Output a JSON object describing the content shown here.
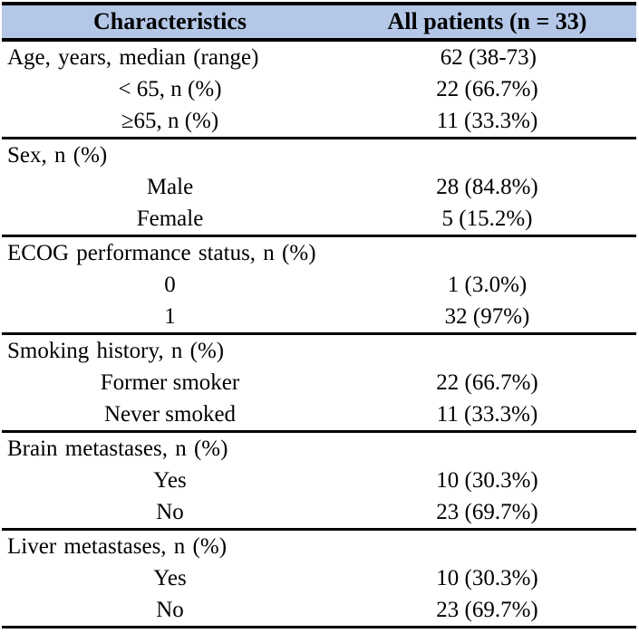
{
  "colors": {
    "header_bg": "#b4c7e7",
    "border": "#000000",
    "text": "#000000"
  },
  "table": {
    "header": {
      "characteristics": "Characteristics",
      "all_patients": "All patients (n = 33)"
    },
    "sections": [
      {
        "rows": [
          {
            "label": "Age, years, median (range)",
            "align": "left",
            "value": "62 (38-73)"
          },
          {
            "label": "< 65, n (%)",
            "align": "center",
            "value": "22 (66.7%)"
          },
          {
            "label": "≥65, n (%)",
            "align": "center",
            "value": "11 (33.3%)"
          }
        ]
      },
      {
        "rows": [
          {
            "label": "Sex, n (%)",
            "align": "left",
            "value": ""
          },
          {
            "label": "Male",
            "align": "center",
            "value": "28 (84.8%)"
          },
          {
            "label": "Female",
            "align": "center",
            "value": "5 (15.2%)"
          }
        ]
      },
      {
        "rows": [
          {
            "label": "ECOG performance status, n (%)",
            "align": "left",
            "value": ""
          },
          {
            "label": "0",
            "align": "center",
            "value": "1 (3.0%)"
          },
          {
            "label": "1",
            "align": "center",
            "value": "32 (97%)"
          }
        ]
      },
      {
        "rows": [
          {
            "label": "Smoking history, n (%)",
            "align": "left",
            "value": ""
          },
          {
            "label": "Former smoker",
            "align": "center",
            "value": "22 (66.7%)"
          },
          {
            "label": "Never smoked",
            "align": "center",
            "value": "11 (33.3%)"
          }
        ]
      },
      {
        "rows": [
          {
            "label": "Brain metastases, n (%)",
            "align": "left",
            "value": ""
          },
          {
            "label": "Yes",
            "align": "center",
            "value": "10 (30.3%)"
          },
          {
            "label": "No",
            "align": "center",
            "value": "23 (69.7%)"
          }
        ]
      },
      {
        "rows": [
          {
            "label": "Liver metastases, n (%)",
            "align": "left",
            "value": ""
          },
          {
            "label": "Yes",
            "align": "center",
            "value": "10 (30.3%)"
          },
          {
            "label": "No",
            "align": "center",
            "value": "23 (69.7%)"
          }
        ]
      }
    ]
  }
}
